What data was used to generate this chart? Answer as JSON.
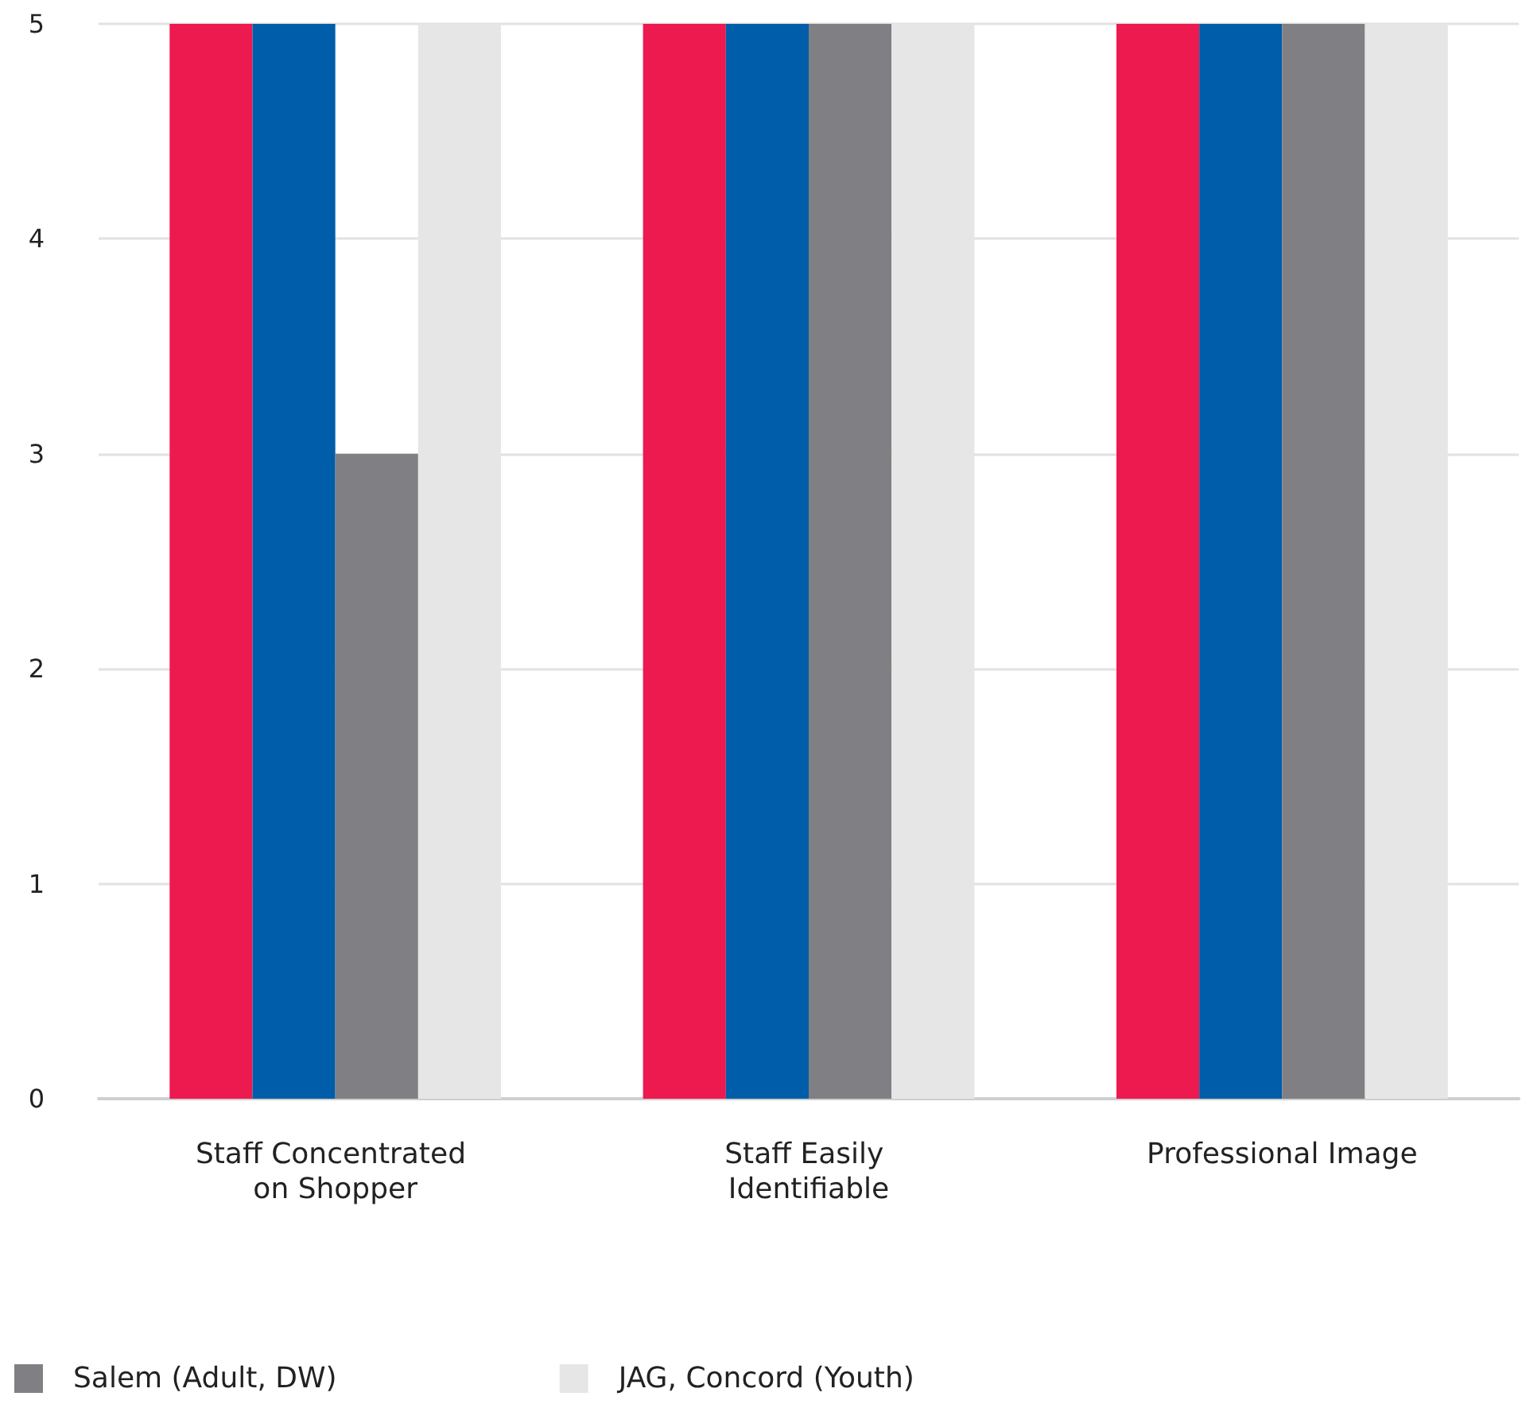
{
  "chart_data": {
    "type": "bar",
    "categories": [
      "Staff Concentrated on Shopper",
      "Staff Easily Identifiable",
      "Professional Image"
    ],
    "series": [
      {
        "color": "#ed1a4f",
        "values": [
          5,
          5,
          5
        ]
      },
      {
        "color": "#005daa",
        "values": [
          5,
          5,
          5
        ]
      },
      {
        "name": "Salem (Adult, DW)",
        "color": "#808084",
        "values": [
          3,
          5,
          5
        ]
      },
      {
        "name": "JAG, Concord (Youth)",
        "color": "#e6e6e6",
        "values": [
          5,
          5,
          5
        ]
      }
    ],
    "ylim": [
      0,
      5
    ],
    "yticks": [
      0,
      1,
      2,
      3,
      4,
      5
    ],
    "grid": "y",
    "legend": "bottom left"
  }
}
